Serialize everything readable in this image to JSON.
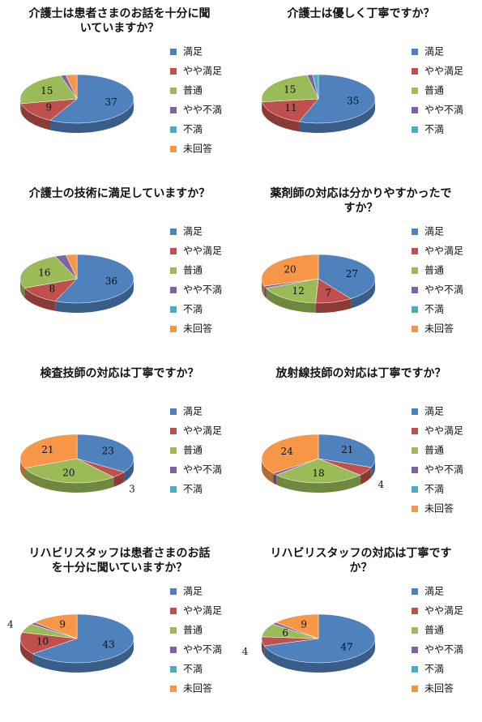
{
  "chart_data": [
    {
      "type": "pie",
      "title": "介護士は患者さまのお話を十分に聞いていますか？",
      "categories": [
        "満足",
        "やや満足",
        "普通",
        "やや不満",
        "不満",
        "未回答"
      ],
      "values": [
        37,
        9,
        15,
        1,
        0,
        2
      ],
      "value_labels": [
        "37",
        "9",
        "15",
        null,
        null,
        null
      ],
      "colors": [
        "#4f81bd",
        "#c0504d",
        "#9bbb59",
        "#8064a2",
        "#4bacc6",
        "#f79646"
      ]
    },
    {
      "type": "pie",
      "title": "介護士は優しく丁寧ですか？",
      "categories": [
        "満足",
        "やや満足",
        "普通",
        "やや不満",
        "不満"
      ],
      "values": [
        35,
        11,
        15,
        1,
        1
      ],
      "value_labels": [
        "35",
        "11",
        "15",
        null,
        null
      ],
      "colors": [
        "#4f81bd",
        "#c0504d",
        "#9bbb59",
        "#8064a2",
        "#4bacc6"
      ]
    },
    {
      "type": "pie",
      "title": "介護士の技術に満足していますか？",
      "categories": [
        "満足",
        "やや満足",
        "普通",
        "やや不満",
        "不満",
        "未回答"
      ],
      "values": [
        36,
        8,
        16,
        2,
        0,
        2
      ],
      "value_labels": [
        "36",
        "8",
        "16",
        null,
        null,
        null
      ],
      "colors": [
        "#4f81bd",
        "#c0504d",
        "#9bbb59",
        "#8064a2",
        "#4bacc6",
        "#f79646"
      ]
    },
    {
      "type": "pie",
      "title": "薬剤師の対応は分かりやすかったですか？",
      "categories": [
        "満足",
        "やや満足",
        "普通",
        "やや不満",
        "不満",
        "未回答"
      ],
      "values": [
        27,
        7,
        12,
        1,
        0,
        20
      ],
      "value_labels": [
        "27",
        "7",
        "12",
        null,
        null,
        "20"
      ],
      "colors": [
        "#4f81bd",
        "#c0504d",
        "#9bbb59",
        "#8064a2",
        "#4bacc6",
        "#f79646"
      ]
    },
    {
      "type": "pie",
      "title": "検査技師の対応は丁寧ですか？",
      "categories": [
        "満足",
        "やや満足",
        "普通",
        "やや不満",
        "不満",
        null
      ],
      "values": [
        23,
        3,
        20,
        0,
        0,
        21
      ],
      "value_labels": [
        "23",
        "3",
        "20",
        null,
        null,
        "21"
      ],
      "colors": [
        "#4f81bd",
        "#c0504d",
        "#9bbb59",
        "#8064a2",
        "#4bacc6",
        "#f79646"
      ]
    },
    {
      "type": "pie",
      "title": "放射線技師の対応は丁寧ですか？",
      "categories": [
        "満足",
        "やや満足",
        "普通",
        "やや不満",
        "不満",
        "未回答"
      ],
      "values": [
        21,
        4,
        18,
        1,
        0,
        24
      ],
      "value_labels": [
        "21",
        "4",
        "18",
        null,
        null,
        "24"
      ],
      "colors": [
        "#4f81bd",
        "#c0504d",
        "#9bbb59",
        "#8064a2",
        "#4bacc6",
        "#f79646"
      ]
    },
    {
      "type": "pie",
      "title": "リハビリスタッフは患者さまのお話を十分に聞いていますか？",
      "categories": [
        "満足",
        "やや満足",
        "普通",
        "やや不満",
        "不満",
        "未回答"
      ],
      "values": [
        43,
        10,
        4,
        1,
        0,
        9
      ],
      "value_labels": [
        "43",
        "10",
        "4",
        null,
        null,
        "9"
      ],
      "colors": [
        "#4f81bd",
        "#c0504d",
        "#9bbb59",
        "#8064a2",
        "#4bacc6",
        "#f79646"
      ]
    },
    {
      "type": "pie",
      "title": "リハビリスタッフの対応は丁寧ですか？",
      "categories": [
        "満足",
        "やや満足",
        "普通",
        "やや不満",
        "不満",
        "未回答"
      ],
      "values": [
        47,
        4,
        6,
        1,
        0,
        9
      ],
      "value_labels": [
        "47",
        "4",
        "6",
        null,
        null,
        "9"
      ],
      "colors": [
        "#4f81bd",
        "#c0504d",
        "#9bbb59",
        "#8064a2",
        "#4bacc6",
        "#f79646"
      ]
    }
  ]
}
